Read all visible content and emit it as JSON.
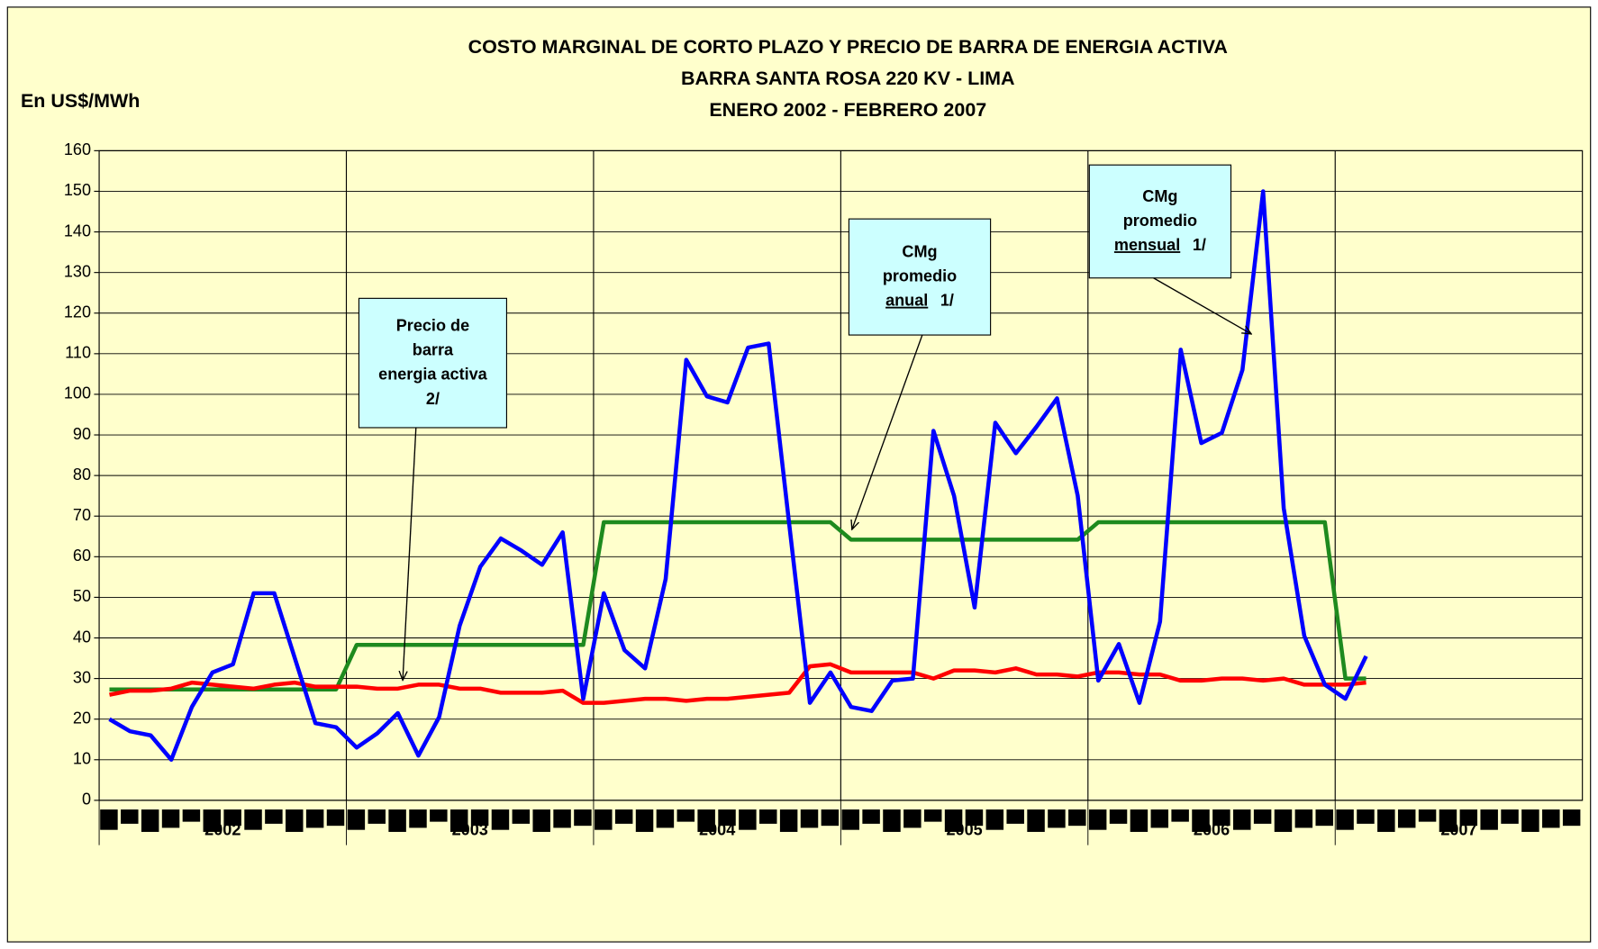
{
  "chart_data": {
    "type": "line",
    "title": [
      "COSTO MARGINAL DE CORTO PLAZO Y PRECIO DE BARRA DE ENERGIA ACTIVA",
      "BARRA SANTA ROSA 220 KV - LIMA",
      "ENERO 2002 - FEBRERO 2007"
    ],
    "y_label": "En US$/MWh",
    "categories": [
      null,
      null,
      null,
      null,
      null,
      null,
      null,
      null,
      null,
      null,
      null,
      null,
      null,
      null,
      null,
      null,
      null,
      null,
      null,
      null,
      null,
      null,
      null,
      null,
      null,
      null,
      null,
      null,
      null,
      null,
      null,
      null,
      null,
      null,
      null,
      null,
      null,
      null,
      null,
      null,
      null,
      null,
      null,
      null,
      null,
      null,
      null,
      null,
      null,
      null,
      null,
      null,
      null,
      null,
      null,
      null,
      null,
      null,
      null,
      null,
      null,
      null,
      null,
      null,
      null,
      null,
      null,
      null,
      null,
      null,
      null,
      null
    ],
    "years": [
      "2002",
      "2003",
      "2004",
      "2005",
      "2006",
      "2007"
    ],
    "ylim": [
      0,
      160
    ],
    "yticks": [
      0,
      10,
      20,
      30,
      40,
      50,
      60,
      70,
      80,
      90,
      100,
      110,
      120,
      130,
      140,
      150,
      160
    ],
    "grid": true,
    "series": [
      {
        "color": "#0000ff",
        "values": [
          20,
          17,
          16,
          10,
          23,
          31.5,
          33.5,
          51,
          51,
          35,
          19,
          18,
          13,
          16.5,
          21.5,
          11,
          20.5,
          43,
          57.5,
          64.5,
          61.5,
          58,
          66,
          25,
          51,
          37,
          32.5,
          54.5,
          108.5,
          99.5,
          98,
          111.5,
          112.5,
          68,
          24,
          31.5,
          23,
          22,
          29.5,
          30,
          91,
          75,
          47.5,
          93,
          85.5,
          92,
          99,
          75,
          29.5,
          38.5,
          24,
          44,
          111,
          88,
          90.5,
          106,
          150,
          72,
          40.5,
          28.5,
          25,
          35.5,
          null,
          null,
          null,
          null,
          null,
          null,
          null,
          null,
          null,
          null
        ]
      },
      {
        "color": "#ff0000",
        "values": [
          26,
          27,
          27,
          27.5,
          29,
          28.5,
          28,
          27.5,
          28.5,
          29,
          28,
          28,
          28,
          27.5,
          27.5,
          28.5,
          28.5,
          27.5,
          27.5,
          26.5,
          26.5,
          26.5,
          27,
          24,
          24,
          24.5,
          25,
          25,
          24.5,
          25,
          25,
          25.5,
          26,
          26.5,
          33,
          33.5,
          31.5,
          31.5,
          31.5,
          31.5,
          30,
          32,
          32,
          31.5,
          32.5,
          31,
          31,
          30.5,
          31.5,
          31.5,
          31,
          31,
          29.5,
          29.5,
          30,
          30,
          29.5,
          30,
          28.5,
          28.5,
          28.5,
          29,
          null,
          null,
          null,
          null,
          null,
          null,
          null,
          null,
          null,
          null
        ]
      },
      {
        "color": "#1e8a1e",
        "values": [
          27.3,
          27.3,
          27.3,
          27.3,
          27.3,
          27.3,
          27.3,
          27.3,
          27.3,
          27.3,
          27.3,
          27.3,
          38.3,
          38.3,
          38.3,
          38.3,
          38.3,
          38.3,
          38.3,
          38.3,
          38.3,
          38.3,
          38.3,
          38.3,
          68.5,
          68.5,
          68.5,
          68.5,
          68.5,
          68.5,
          68.5,
          68.5,
          68.5,
          68.5,
          68.5,
          68.5,
          64.2,
          64.2,
          64.2,
          64.2,
          64.2,
          64.2,
          64.2,
          64.2,
          64.2,
          64.2,
          64.2,
          64.2,
          68.5,
          68.5,
          68.5,
          68.5,
          68.5,
          68.5,
          68.5,
          68.5,
          68.5,
          68.5,
          68.5,
          68.5,
          30,
          30,
          null,
          null,
          null,
          null,
          null,
          null,
          null,
          null,
          null,
          null
        ]
      }
    ],
    "annotations": [
      {
        "lines": [
          [
            {
              "text": "Precio de"
            }
          ],
          [
            {
              "text": "barra"
            }
          ],
          [
            {
              "text": "energia activa"
            }
          ],
          [
            {
              "text": "2/"
            }
          ]
        ]
      },
      {
        "lines": [
          [
            {
              "text": "CMg"
            }
          ],
          [
            {
              "text": "promedio"
            }
          ],
          [
            {
              "text": "anual",
              "underline": true
            },
            {
              "text": "1/"
            }
          ]
        ]
      },
      {
        "lines": [
          [
            {
              "text": "CMg"
            }
          ],
          [
            {
              "text": "promedio"
            }
          ],
          [
            {
              "text": "mensual",
              "underline": true
            },
            {
              "text": "1/"
            }
          ]
        ]
      }
    ],
    "annotation_color": "#ccffff",
    "background": "#ffffcc"
  }
}
